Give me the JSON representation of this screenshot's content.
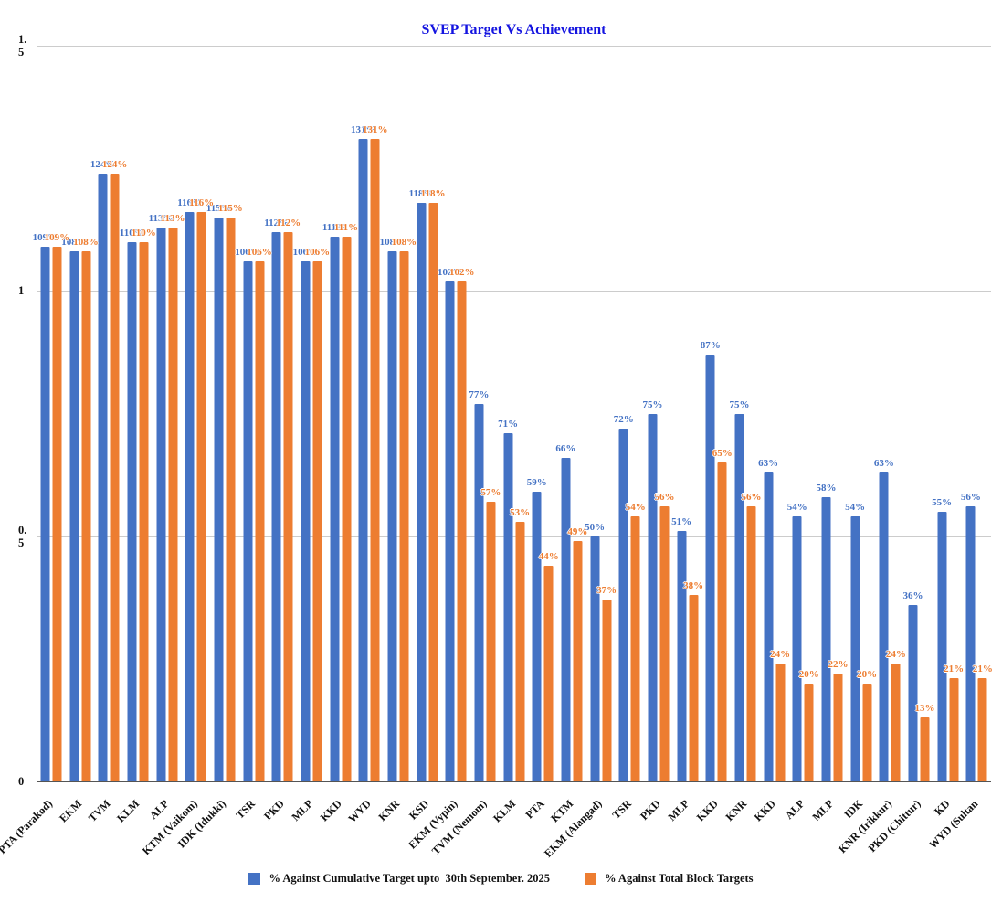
{
  "chart_data": {
    "type": "bar",
    "title": "SVEP Target Vs Achievement",
    "categories": [
      "PTA (Parakod)",
      "EKM",
      "TVM",
      "KLM",
      "ALP",
      "KTM (Vaikom)",
      "IDK (Idukki)",
      "TSR",
      "PKD",
      "MLP",
      "KKD",
      "WYD",
      "KNR",
      "KSD",
      "EKM (Vypin)",
      "TVM (Nemom)",
      "KLM",
      "PTA",
      "KTM",
      "EKM (Alangad)",
      "TSR",
      "PKD",
      "MLP",
      "KKD",
      "KNR",
      "KKD",
      "ALP",
      "MLP",
      "IDK",
      "KNR (Irikkur)",
      "PKD (Chittur)",
      "KD",
      "WYD (Sultan"
    ],
    "series": [
      {
        "name": "% Against Cumulative Target upto  30th September. 2025",
        "color": "#4472C4",
        "values": [
          109,
          108,
          124,
          110,
          113,
          116,
          115,
          106,
          112,
          106,
          111,
          131,
          108,
          118,
          102,
          77,
          71,
          59,
          66,
          50,
          72,
          75,
          51,
          87,
          75,
          63,
          54,
          58,
          54,
          63,
          36,
          55,
          56
        ]
      },
      {
        "name": "% Against Total Block Targets",
        "color": "#ED7D31",
        "values": [
          109,
          108,
          124,
          110,
          113,
          116,
          115,
          106,
          112,
          106,
          111,
          131,
          108,
          118,
          102,
          57,
          53,
          44,
          49,
          37,
          54,
          56,
          38,
          65,
          56,
          24,
          20,
          22,
          20,
          24,
          13,
          21,
          21
        ]
      }
    ],
    "value_suffix": "%",
    "ylim": [
      0,
      1.5
    ],
    "y_ticks": [
      0,
      0.5,
      1,
      1.5
    ],
    "grid": true,
    "legend_position": "bottom"
  },
  "legend": [
    {
      "label": "% Against Cumulative Target upto  30th September. 2025",
      "color": "#4472C4"
    },
    {
      "label": "% Against Total Block Targets",
      "color": "#ED7D31"
    }
  ],
  "colors": {
    "title": "#1414E0",
    "series1": "#4472C4",
    "series2": "#ED7D31",
    "grid": "#CCCCCC",
    "baseline": "#555555",
    "axis_text": "#111111"
  }
}
